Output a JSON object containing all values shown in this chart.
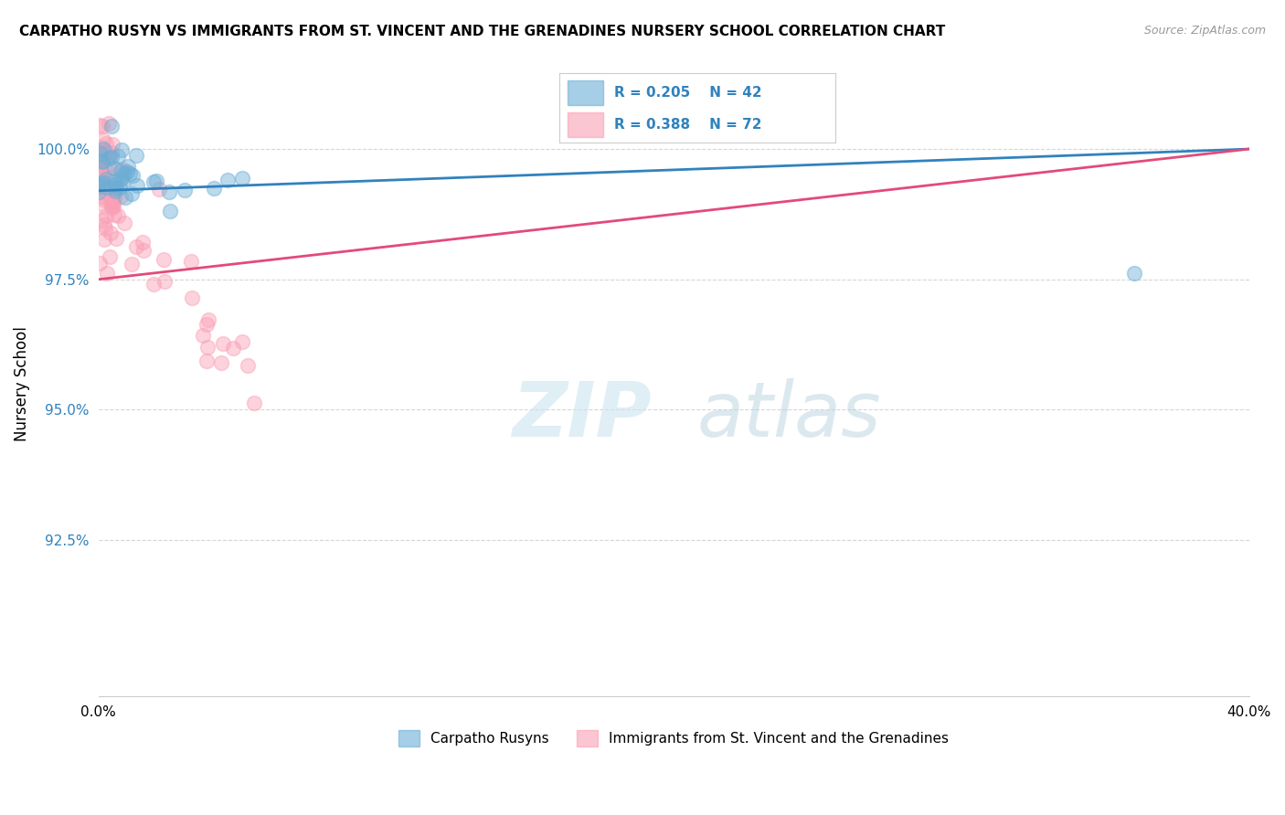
{
  "title": "CARPATHO RUSYN VS IMMIGRANTS FROM ST. VINCENT AND THE GRENADINES NURSERY SCHOOL CORRELATION CHART",
  "source": "Source: ZipAtlas.com",
  "legend1_label": "Carpatho Rusyns",
  "legend2_label": "Immigrants from St. Vincent and the Grenadines",
  "R1": 0.205,
  "N1": 42,
  "R2": 0.388,
  "N2": 72,
  "color_blue": "#6baed6",
  "color_pink": "#fa9fb5",
  "color_blue_line": "#3182bd",
  "color_pink_line": "#e34a7a",
  "xlim": [
    0.0,
    40.0
  ],
  "ylim": [
    89.5,
    101.5
  ],
  "yticks": [
    92.5,
    95.0,
    97.5,
    100.0
  ],
  "ylabel_label": "Nursery School"
}
